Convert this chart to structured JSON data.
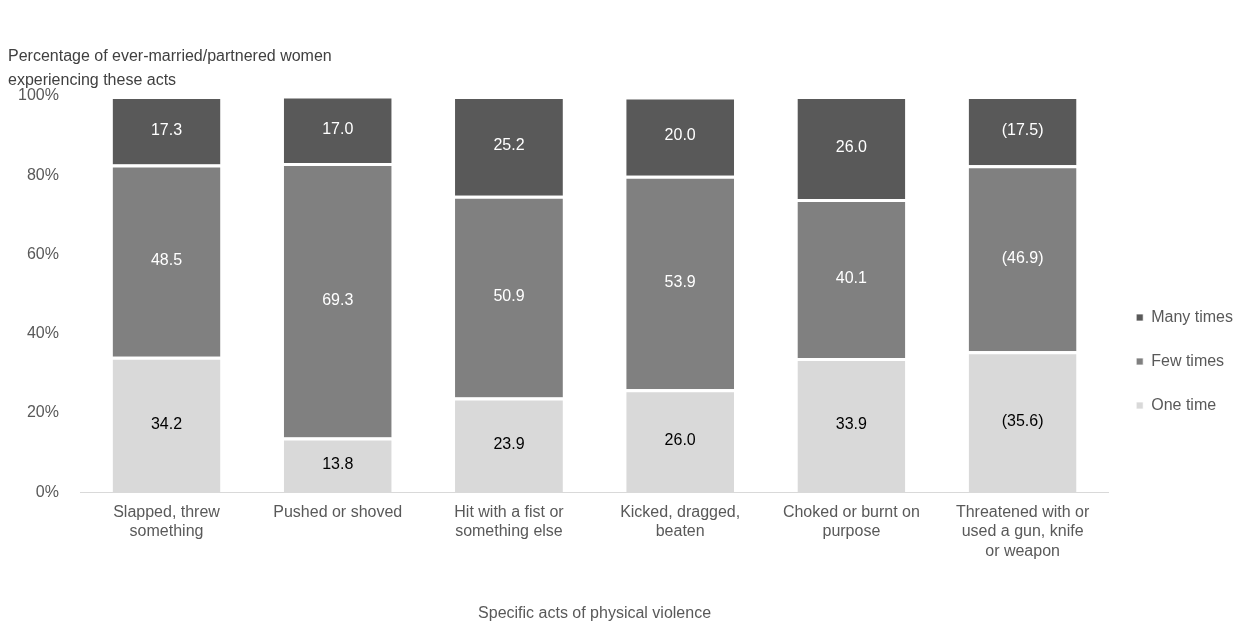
{
  "chart_data": {
    "type": "bar",
    "stacked": true,
    "ylabel": "Percentage of ever-married/partnered women experiencing these acts",
    "xlabel": "Specific acts of physical violence",
    "categories": [
      "Slapped, threw something",
      "Pushed or shoved",
      "Hit with a fist or something else",
      "Kicked, dragged, beaten",
      "Choked or burnt on purpose",
      "Threatened with or used a gun, knife or weapon"
    ],
    "series": [
      {
        "name": "One time",
        "color": "#d9d9d9",
        "values": [
          34.2,
          13.8,
          23.9,
          26.0,
          33.9,
          35.6
        ],
        "value_labels": [
          "34.2",
          "13.8",
          "23.9",
          "26.0",
          "33.9",
          "(35.6)"
        ]
      },
      {
        "name": "Few times",
        "color": "#808080",
        "values": [
          48.5,
          69.3,
          50.9,
          53.9,
          40.1,
          46.9
        ],
        "value_labels": [
          "48.5",
          "69.3",
          "50.9",
          "53.9",
          "40.1",
          "(46.9)"
        ]
      },
      {
        "name": "Many times",
        "color": "#595959",
        "values": [
          17.3,
          17.0,
          25.2,
          20.0,
          26.0,
          17.5
        ],
        "value_labels": [
          "17.3",
          "17.0",
          "25.2",
          "20.0",
          "26.0",
          "(17.5)"
        ]
      }
    ],
    "ylim": [
      0,
      100
    ],
    "yticks": [
      {
        "value": 0,
        "label": "0%"
      },
      {
        "value": 20,
        "label": "20%"
      },
      {
        "value": 40,
        "label": "40%"
      },
      {
        "value": 60,
        "label": "60%"
      },
      {
        "value": 80,
        "label": "80%"
      },
      {
        "value": 100,
        "label": "100%"
      }
    ],
    "grid": false,
    "legend": "right"
  }
}
